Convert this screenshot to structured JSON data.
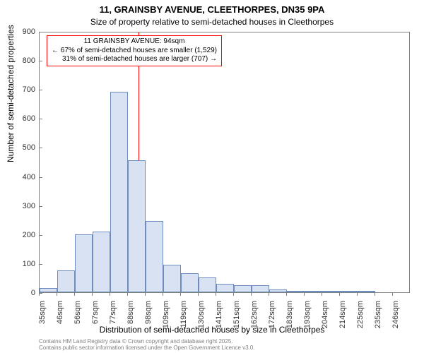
{
  "title": "11, GRAINSBY AVENUE, CLEETHORPES, DN35 9PA",
  "subtitle": "Size of property relative to semi-detached houses in Cleethorpes",
  "title_fontsize": 13,
  "subtitle_fontsize": 12,
  "chart": {
    "type": "histogram",
    "background_color": "#ffffff",
    "border_color": "#808080",
    "y_axis": {
      "title": "Number of semi-detached properties",
      "title_fontsize": 12,
      "min": 0,
      "max": 900,
      "tick_step": 100,
      "tick_fontsize": 11,
      "tick_color": "#333333"
    },
    "x_axis": {
      "title": "Distribution of semi-detached houses by size in Cleethorpes",
      "title_fontsize": 12,
      "tick_fontsize": 11,
      "tick_color": "#333333",
      "categories": [
        "35sqm",
        "46sqm",
        "56sqm",
        "67sqm",
        "77sqm",
        "88sqm",
        "98sqm",
        "109sqm",
        "119sqm",
        "130sqm",
        "141sqm",
        "151sqm",
        "162sqm",
        "172sqm",
        "183sqm",
        "193sqm",
        "204sqm",
        "214sqm",
        "225sqm",
        "235sqm",
        "246sqm"
      ]
    },
    "bars": {
      "fill_color": "#d9e2f3",
      "stroke_color": "#6f8cbf",
      "stroke_width": 1,
      "values": [
        15,
        75,
        200,
        210,
        690,
        455,
        245,
        95,
        65,
        50,
        30,
        25,
        25,
        10,
        4,
        3,
        2,
        1,
        1,
        0,
        0
      ]
    },
    "reference_line": {
      "x_category_index": 5,
      "fraction_within_bin": 0.6,
      "color": "#ff0000",
      "width": 1
    },
    "annotation": {
      "border_color": "#ff0000",
      "background_color": "#ffffff",
      "fontsize": 10,
      "line1": "11 GRAINSBY AVENUE: 94sqm",
      "line2": "← 67% of semi-detached houses are smaller (1,529)",
      "line3": "31% of semi-detached houses are larger (707) →"
    }
  },
  "credits": {
    "line1": "Contains HM Land Registry data © Crown copyright and database right 2025.",
    "line2": "Contains public sector information licensed under the Open Government Licence v3.0.",
    "fontsize": 8,
    "color": "#808080"
  }
}
